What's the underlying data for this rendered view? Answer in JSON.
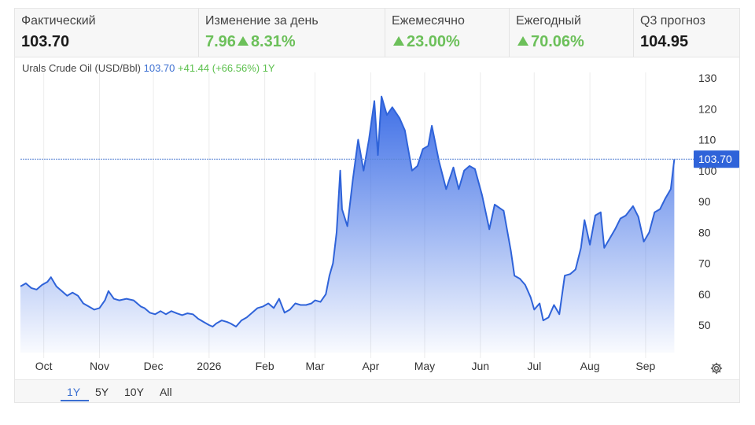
{
  "stats": [
    {
      "label": "Фактический",
      "value": "103.70",
      "change": "",
      "tone": "neutral"
    },
    {
      "label": "Изменение за день",
      "value": "7.96",
      "change": "8.31%",
      "tone": "pos"
    },
    {
      "label": "Ежемесячно",
      "value": "",
      "change": "23.00%",
      "tone": "pos"
    },
    {
      "label": "Ежегодный",
      "value": "",
      "change": "70.06%",
      "tone": "pos"
    },
    {
      "label": "Q3 прогноз",
      "value": "104.95",
      "change": "",
      "tone": "neutral"
    }
  ],
  "chart_header": {
    "name": "Urals Crude Oil (USD/Bbl)",
    "price": "103.70",
    "change": "+41.44 (+66.56%)",
    "range": "1Y"
  },
  "range_buttons": [
    {
      "label": "1Y",
      "active": true
    },
    {
      "label": "5Y",
      "active": false
    },
    {
      "label": "10Y",
      "active": false
    },
    {
      "label": "All",
      "active": false
    }
  ],
  "colors": {
    "line": "#2f63d9",
    "fill_top": "#3d6ee6",
    "positive": "#6cc05a",
    "tag": "#2f63d9"
  },
  "icons": {
    "settings": "gear-icon",
    "up": "triangle-up-icon"
  },
  "chart_data": {
    "type": "area",
    "title": "Urals Crude Oil (USD/Bbl)",
    "xlabel": "",
    "ylabel": "",
    "y_axis_side": "right",
    "grid": "vertical",
    "legend": "none",
    "ylim": [
      40,
      132
    ],
    "y_ticks": [
      50,
      60,
      70,
      80,
      90,
      100,
      110,
      120,
      130
    ],
    "x_range": [
      "2025-09-18",
      "2026-09-19"
    ],
    "x_ticks": [
      {
        "label": "Oct",
        "date": "2025-10-01"
      },
      {
        "label": "Nov",
        "date": "2025-11-01"
      },
      {
        "label": "Dec",
        "date": "2025-12-01"
      },
      {
        "label": "2026",
        "date": "2026-01-01"
      },
      {
        "label": "Feb",
        "date": "2026-02-01"
      },
      {
        "label": "Mar",
        "date": "2026-03-01"
      },
      {
        "label": "Apr",
        "date": "2026-04-01"
      },
      {
        "label": "May",
        "date": "2026-05-01"
      },
      {
        "label": "Jun",
        "date": "2026-06-01"
      },
      {
        "label": "Jul",
        "date": "2026-07-01"
      },
      {
        "label": "Aug",
        "date": "2026-08-01"
      },
      {
        "label": "Sep",
        "date": "2026-09-01"
      }
    ],
    "last_value": 103.7,
    "last_value_label": "103.70",
    "series": [
      {
        "points": [
          [
            "2025-09-18",
            62.5
          ],
          [
            "2025-09-21",
            63.5
          ],
          [
            "2025-09-24",
            62.0
          ],
          [
            "2025-09-27",
            61.5
          ],
          [
            "2025-09-30",
            63.0
          ],
          [
            "2025-10-03",
            64.0
          ],
          [
            "2025-10-05",
            65.5
          ],
          [
            "2025-10-08",
            62.5
          ],
          [
            "2025-10-11",
            61.0
          ],
          [
            "2025-10-14",
            59.5
          ],
          [
            "2025-10-17",
            60.5
          ],
          [
            "2025-10-20",
            59.5
          ],
          [
            "2025-10-23",
            57.0
          ],
          [
            "2025-10-26",
            56.0
          ],
          [
            "2025-10-29",
            55.0
          ],
          [
            "2025-11-01",
            55.5
          ],
          [
            "2025-11-04",
            58.0
          ],
          [
            "2025-11-06",
            61.0
          ],
          [
            "2025-11-09",
            58.5
          ],
          [
            "2025-11-12",
            58.0
          ],
          [
            "2025-11-16",
            58.5
          ],
          [
            "2025-11-20",
            58.0
          ],
          [
            "2025-11-24",
            56.0
          ],
          [
            "2025-11-26",
            55.5
          ],
          [
            "2025-11-29",
            54.0
          ],
          [
            "2025-12-02",
            53.5
          ],
          [
            "2025-12-05",
            54.5
          ],
          [
            "2025-12-08",
            53.5
          ],
          [
            "2025-12-11",
            54.5
          ],
          [
            "2025-12-14",
            53.8
          ],
          [
            "2025-12-17",
            53.2
          ],
          [
            "2025-12-20",
            53.8
          ],
          [
            "2025-12-23",
            53.5
          ],
          [
            "2025-12-26",
            52.0
          ],
          [
            "2025-12-29",
            51.0
          ],
          [
            "2026-01-01",
            50.0
          ],
          [
            "2026-01-03",
            49.5
          ],
          [
            "2026-01-05",
            50.5
          ],
          [
            "2026-01-08",
            51.5
          ],
          [
            "2026-01-11",
            51.0
          ],
          [
            "2026-01-13",
            50.5
          ],
          [
            "2026-01-16",
            49.5
          ],
          [
            "2026-01-19",
            51.5
          ],
          [
            "2026-01-22",
            52.5
          ],
          [
            "2026-01-25",
            54.0
          ],
          [
            "2026-01-28",
            55.5
          ],
          [
            "2026-01-31",
            56.0
          ],
          [
            "2026-02-03",
            57.0
          ],
          [
            "2026-02-06",
            55.5
          ],
          [
            "2026-02-09",
            58.5
          ],
          [
            "2026-02-12",
            54.0
          ],
          [
            "2026-02-15",
            55.0
          ],
          [
            "2026-02-18",
            57.0
          ],
          [
            "2026-02-21",
            56.5
          ],
          [
            "2026-02-24",
            56.5
          ],
          [
            "2026-02-27",
            57.0
          ],
          [
            "2026-03-01",
            58.0
          ],
          [
            "2026-03-04",
            57.5
          ],
          [
            "2026-03-07",
            60.0
          ],
          [
            "2026-03-09",
            66.0
          ],
          [
            "2026-03-11",
            70.0
          ],
          [
            "2026-03-13",
            80.0
          ],
          [
            "2026-03-15",
            100.0
          ],
          [
            "2026-03-16",
            87.5
          ],
          [
            "2026-03-19",
            82.0
          ],
          [
            "2026-03-22",
            97.0
          ],
          [
            "2026-03-25",
            110.0
          ],
          [
            "2026-03-28",
            100.0
          ],
          [
            "2026-03-31",
            110.0
          ],
          [
            "2026-04-03",
            122.5
          ],
          [
            "2026-04-05",
            105.0
          ],
          [
            "2026-04-07",
            124.0
          ],
          [
            "2026-04-10",
            118.0
          ],
          [
            "2026-04-13",
            120.5
          ],
          [
            "2026-04-17",
            117.0
          ],
          [
            "2026-04-20",
            113.0
          ],
          [
            "2026-04-24",
            100.0
          ],
          [
            "2026-04-27",
            101.5
          ],
          [
            "2026-04-30",
            107.0
          ],
          [
            "2026-05-03",
            108.0
          ],
          [
            "2026-05-05",
            114.5
          ],
          [
            "2026-05-09",
            103.0
          ],
          [
            "2026-05-13",
            94.0
          ],
          [
            "2026-05-17",
            101.0
          ],
          [
            "2026-05-20",
            94.0
          ],
          [
            "2026-05-23",
            100.0
          ],
          [
            "2026-05-26",
            101.5
          ],
          [
            "2026-05-29",
            100.5
          ],
          [
            "2026-06-02",
            92.0
          ],
          [
            "2026-06-06",
            81.0
          ],
          [
            "2026-06-09",
            89.0
          ],
          [
            "2026-06-14",
            87.0
          ],
          [
            "2026-06-18",
            74.0
          ],
          [
            "2026-06-20",
            66.0
          ],
          [
            "2026-06-23",
            65.0
          ],
          [
            "2026-06-26",
            63.0
          ],
          [
            "2026-06-29",
            59.0
          ],
          [
            "2026-07-01",
            55.0
          ],
          [
            "2026-07-04",
            57.0
          ],
          [
            "2026-07-06",
            51.5
          ],
          [
            "2026-07-09",
            52.5
          ],
          [
            "2026-07-12",
            56.5
          ],
          [
            "2026-07-15",
            53.5
          ],
          [
            "2026-07-18",
            66.0
          ],
          [
            "2026-07-21",
            66.5
          ],
          [
            "2026-07-24",
            68.0
          ],
          [
            "2026-07-27",
            75.0
          ],
          [
            "2026-07-29",
            84.0
          ],
          [
            "2026-08-01",
            76.0
          ],
          [
            "2026-08-04",
            85.5
          ],
          [
            "2026-08-07",
            86.5
          ],
          [
            "2026-08-09",
            75.0
          ],
          [
            "2026-08-12",
            78.0
          ],
          [
            "2026-08-15",
            81.0
          ],
          [
            "2026-08-18",
            84.5
          ],
          [
            "2026-08-21",
            85.5
          ],
          [
            "2026-08-25",
            88.5
          ],
          [
            "2026-08-28",
            85.0
          ],
          [
            "2026-08-31",
            77.0
          ],
          [
            "2026-09-03",
            80.0
          ],
          [
            "2026-09-06",
            86.5
          ],
          [
            "2026-09-09",
            87.5
          ],
          [
            "2026-09-12",
            91.0
          ],
          [
            "2026-09-15",
            94.0
          ],
          [
            "2026-09-17",
            103.7
          ]
        ]
      }
    ]
  }
}
